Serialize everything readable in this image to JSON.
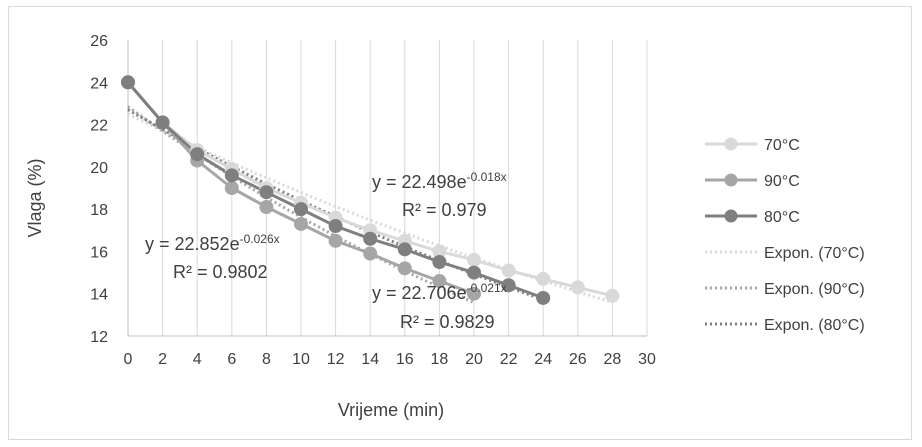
{
  "chart_data": {
    "type": "line",
    "title": "",
    "xlabel": "Vrijeme (min)",
    "ylabel": "Vlaga (%)",
    "xlim": [
      0,
      30
    ],
    "ylim": [
      12,
      26
    ],
    "x_ticks": [
      "0",
      "2",
      "4",
      "6",
      "8",
      "10",
      "12",
      "14",
      "16",
      "18",
      "20",
      "22",
      "24",
      "26",
      "28",
      "30"
    ],
    "y_ticks": [
      "12",
      "14",
      "16",
      "18",
      "20",
      "22",
      "24",
      "26"
    ],
    "grid": "vertical",
    "legend_position": "right",
    "series": [
      {
        "name": "70°C",
        "color": "#d9d9d9",
        "x": [
          0,
          2,
          4,
          6,
          8,
          10,
          12,
          14,
          16,
          18,
          20,
          22,
          24,
          26,
          28
        ],
        "y": [
          24.0,
          22.1,
          20.8,
          19.9,
          19.0,
          18.3,
          17.6,
          17.0,
          16.5,
          16.0,
          15.6,
          15.1,
          14.7,
          14.3,
          13.9
        ]
      },
      {
        "name": "90°C",
        "color": "#a6a6a6",
        "x": [
          0,
          2,
          4,
          6,
          8,
          10,
          12,
          14,
          16,
          18,
          20
        ],
        "y": [
          24.0,
          22.1,
          20.3,
          19.0,
          18.1,
          17.3,
          16.5,
          15.9,
          15.2,
          14.6,
          14.0
        ]
      },
      {
        "name": "80°C",
        "color": "#7f7f7f",
        "x": [
          0,
          2,
          4,
          6,
          8,
          10,
          12,
          14,
          16,
          18,
          20,
          22,
          24
        ],
        "y": [
          24.0,
          22.1,
          20.6,
          19.6,
          18.8,
          18.0,
          17.2,
          16.6,
          16.1,
          15.5,
          15.0,
          14.4,
          13.8
        ]
      }
    ],
    "trendlines": [
      {
        "name": "Expon. (70°C)",
        "color": "#d9d9d9",
        "a": 22.498,
        "b": -0.018,
        "x_start": 0,
        "x_end": 28
      },
      {
        "name": "Expon. (90°C)",
        "color": "#a6a6a6",
        "a": 22.852,
        "b": -0.026,
        "x_start": 0,
        "x_end": 20
      },
      {
        "name": "Expon. (80°C)",
        "color": "#7f7f7f",
        "a": 22.706,
        "b": -0.021,
        "x_start": 0,
        "x_end": 24
      }
    ],
    "annotations": [
      {
        "id": "eq70",
        "prefix": "y = 22.498e",
        "exp": "-0.018x",
        "r2": "R² = 0.979"
      },
      {
        "id": "eq90",
        "prefix": "y = 22.852e",
        "exp": "-0.026x",
        "r2": "R² = 0.9802"
      },
      {
        "id": "eq80",
        "prefix": "y = 22.706e",
        "exp": "-0.021x",
        "r2": "R² = 0.9829"
      }
    ]
  }
}
